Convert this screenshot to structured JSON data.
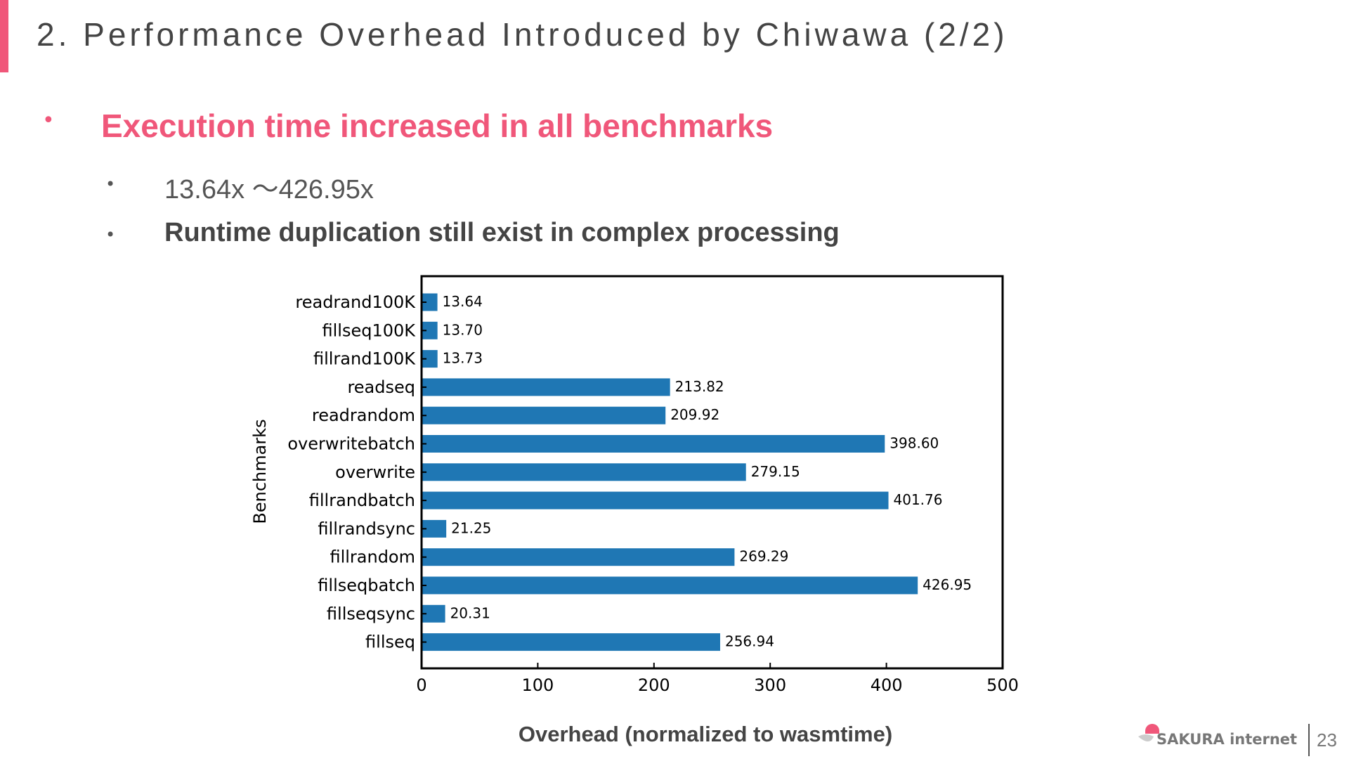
{
  "header": {
    "title": "2. Performance Overhead Introduced by Chiwawa (2/2)",
    "accent_color": "#f0577a"
  },
  "bullets": {
    "main": "Execution time increased in all benchmarks",
    "sub": [
      "13.64x ～426.95x",
      "Runtime duplication still exist in complex processing"
    ]
  },
  "chart_data": {
    "type": "bar",
    "orientation": "horizontal",
    "categories": [
      "readrand100K",
      "fillseq100K",
      "fillrand100K",
      "readseq",
      "readrandom",
      "overwritebatch",
      "overwrite",
      "fillrandbatch",
      "fillrandsync",
      "fillrandom",
      "fillseqbatch",
      "fillseqsync",
      "fillseq"
    ],
    "values": [
      13.64,
      13.7,
      13.73,
      213.82,
      209.92,
      398.6,
      279.15,
      401.76,
      21.25,
      269.29,
      426.95,
      20.31,
      256.94
    ],
    "value_labels": [
      "13.64",
      "13.70",
      "13.73",
      "213.82",
      "209.92",
      "398.60",
      "279.15",
      "401.76",
      "21.25",
      "269.29",
      "426.95",
      "20.31",
      "256.94"
    ],
    "xlabel": "Overhead (normalized to wasmtime)",
    "ylabel": "Benchmarks",
    "xlim": [
      0,
      500
    ],
    "xticks": [
      "0",
      "100",
      "200",
      "300",
      "400",
      "500"
    ],
    "grid": false,
    "bar_color": "#1f77b4"
  },
  "footer": {
    "logo": "SAKURA internet",
    "page_number": "23"
  }
}
